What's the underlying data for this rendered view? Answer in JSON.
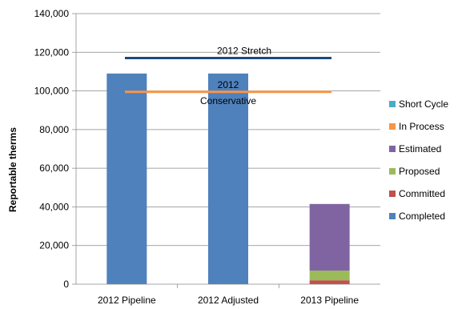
{
  "chart_data": {
    "type": "bar",
    "stacked": true,
    "categories": [
      "2012 Pipeline",
      "2012 Adjusted",
      "2013 Pipeline"
    ],
    "series": [
      {
        "name": "Completed",
        "color": "#4F81BD",
        "values": [
          109000,
          109000,
          0
        ]
      },
      {
        "name": "Committed",
        "color": "#C0504D",
        "values": [
          0,
          0,
          2000
        ]
      },
      {
        "name": "Proposed",
        "color": "#9BBB59",
        "values": [
          0,
          0,
          5000
        ]
      },
      {
        "name": "Estimated",
        "color": "#8064A2",
        "values": [
          0,
          0,
          34500
        ]
      },
      {
        "name": "In Process",
        "color": "#F79646",
        "values": [
          0,
          0,
          0
        ]
      },
      {
        "name": "Short Cycle",
        "color": "#4BACC6",
        "values": [
          0,
          0,
          0
        ]
      }
    ],
    "reference_lines": [
      {
        "label": "2012 Stretch",
        "value": 117000,
        "color": "#1F497D"
      },
      {
        "label_lines": [
          "2012",
          "Conservative"
        ],
        "value": 99500,
        "color": "#F79646"
      }
    ],
    "ylabel": "Reportable therms",
    "ylim": [
      0,
      140000
    ],
    "y_ticks": [
      "0",
      "20,000",
      "40,000",
      "60,000",
      "80,000",
      "100,000",
      "120,000",
      "140,000"
    ],
    "grid": true,
    "legend": "right",
    "legend_order": [
      "Short Cycle",
      "In Process",
      "Estimated",
      "Proposed",
      "Committed",
      "Completed"
    ]
  }
}
